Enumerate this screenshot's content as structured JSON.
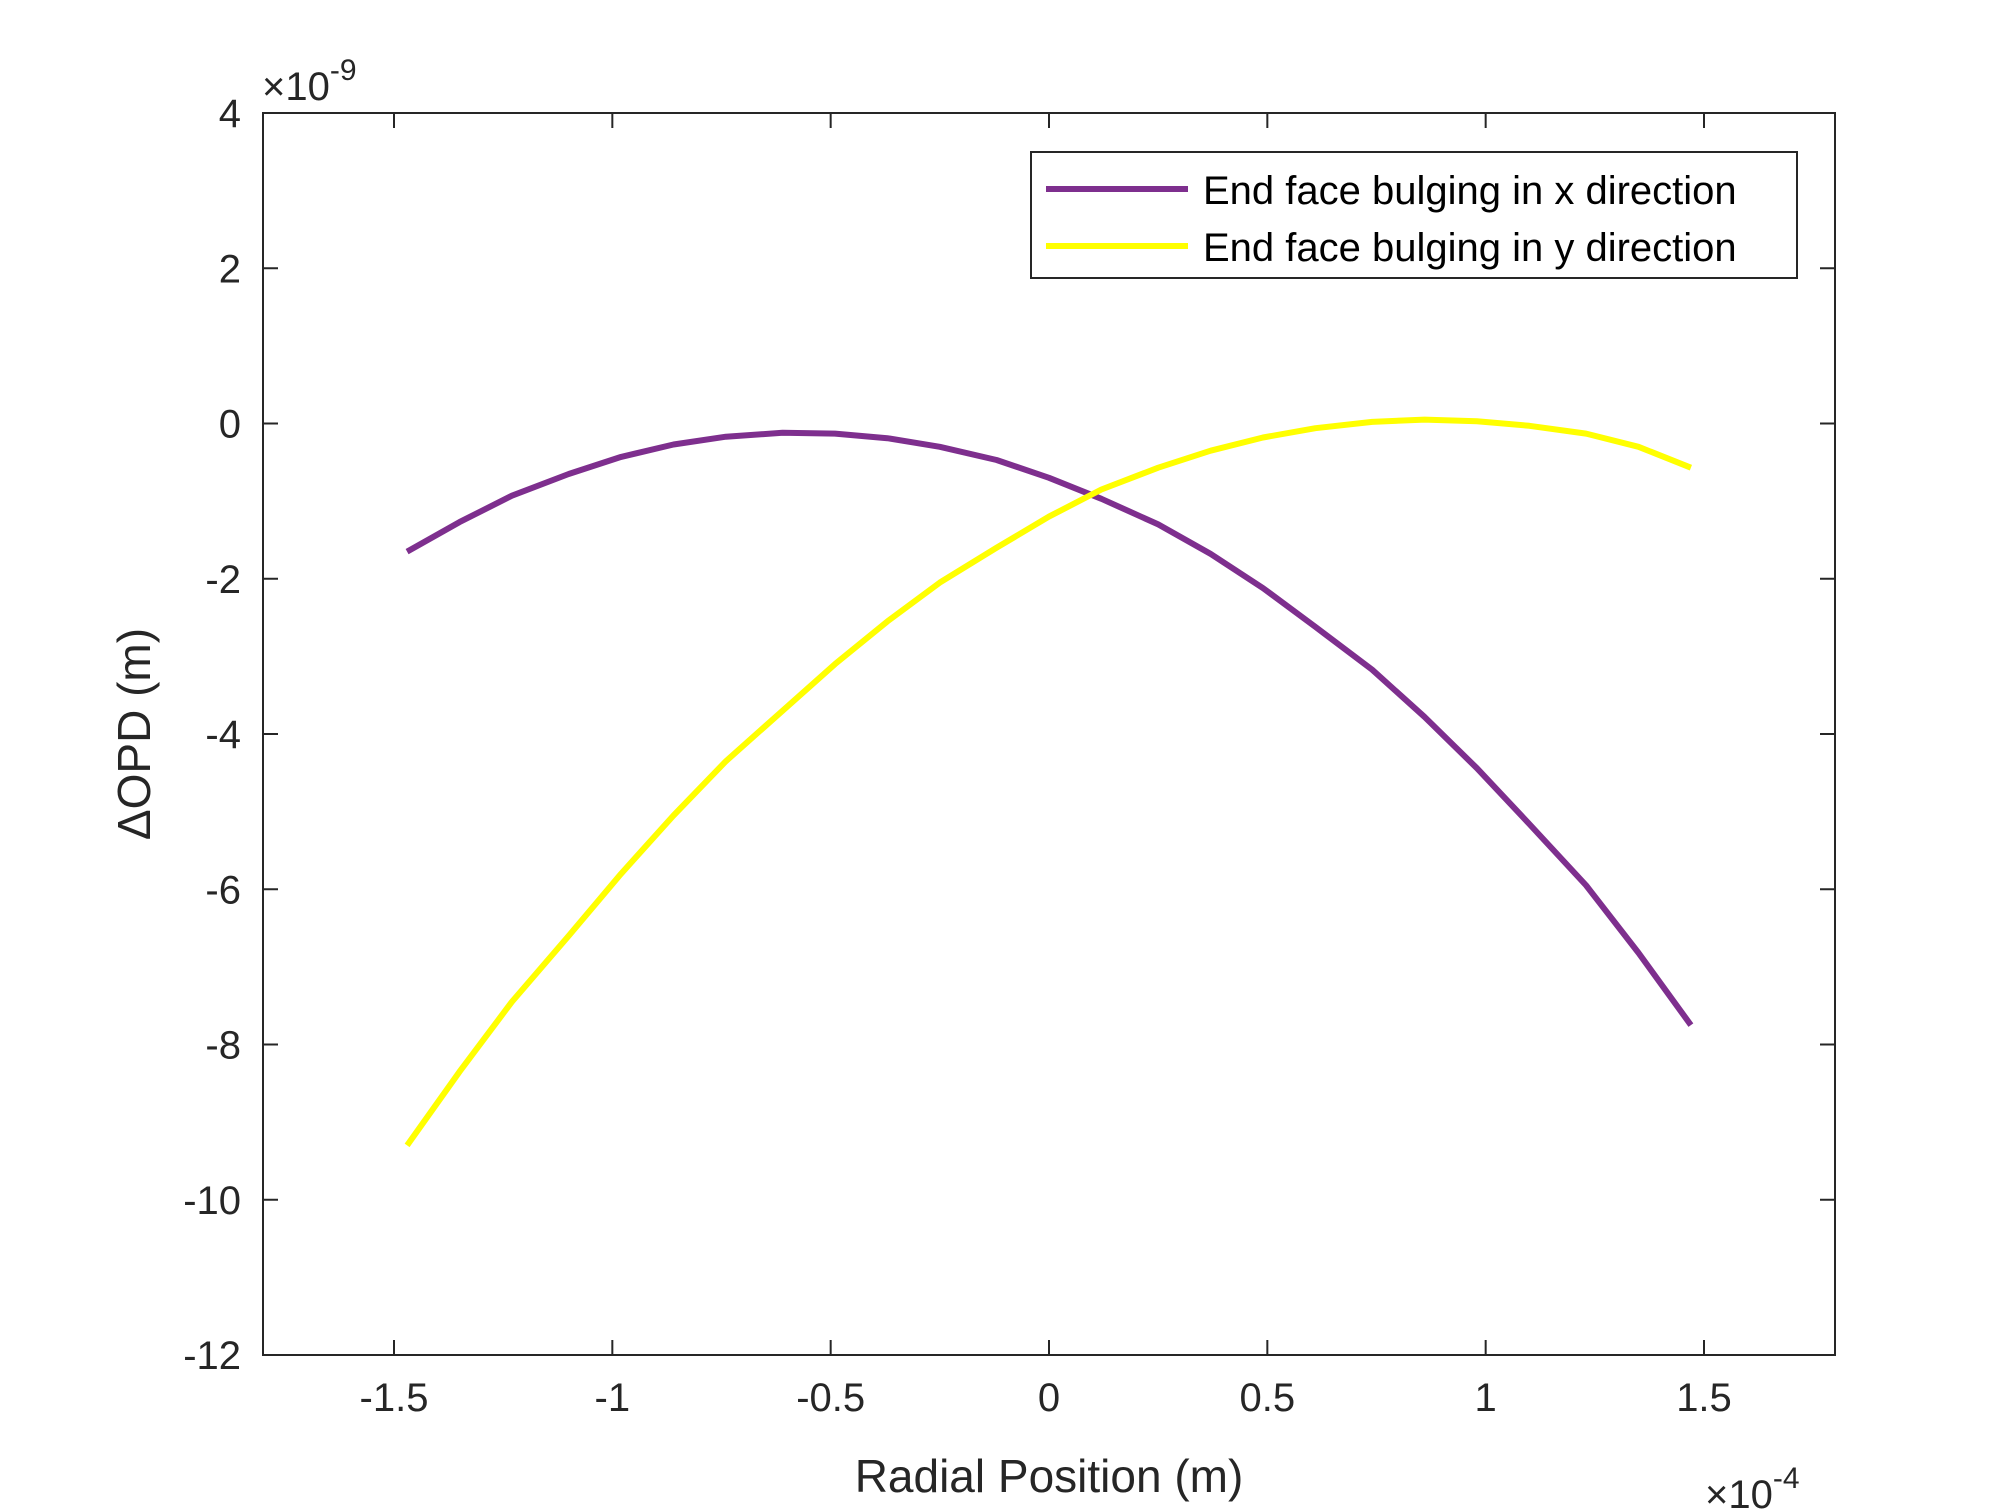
{
  "chart_data": {
    "type": "line",
    "title": "",
    "xlabel": "Radial Position (m)",
    "ylabel": "ΔOPD (m)",
    "x_exponent": {
      "base": "×10",
      "power": "-4"
    },
    "y_exponent": {
      "base": "×10",
      "power": "-9"
    },
    "xlim": [
      -1.8,
      1.8
    ],
    "ylim": [
      -12,
      4
    ],
    "xticks": [
      -1.5,
      -1,
      -0.5,
      0,
      0.5,
      1,
      1.5
    ],
    "xtick_labels": [
      "-1.5",
      "-1",
      "-0.5",
      "0",
      "0.5",
      "1",
      "1.5"
    ],
    "yticks": [
      -12,
      -10,
      -8,
      -6,
      -4,
      -2,
      0,
      2,
      4
    ],
    "ytick_labels": [
      "-12",
      "-10",
      "-8",
      "-6",
      "-4",
      "-2",
      "0",
      "2",
      "4"
    ],
    "grid": false,
    "legend_position": "top-right",
    "series": [
      {
        "name": "End face bulging in x direction",
        "color": "#7E2F8E",
        "x": [
          -1.47,
          -1.35,
          -1.23,
          -1.1,
          -0.98,
          -0.86,
          -0.74,
          -0.61,
          -0.49,
          -0.37,
          -0.25,
          -0.12,
          0.0,
          0.12,
          0.25,
          0.37,
          0.49,
          0.61,
          0.74,
          0.86,
          0.98,
          1.1,
          1.23,
          1.35,
          1.47
        ],
        "values": [
          -1.65,
          -1.27,
          -0.93,
          -0.65,
          -0.43,
          -0.27,
          -0.17,
          -0.12,
          -0.13,
          -0.19,
          -0.3,
          -0.47,
          -0.7,
          -0.97,
          -1.3,
          -1.68,
          -2.12,
          -2.62,
          -3.17,
          -3.78,
          -4.44,
          -5.16,
          -5.95,
          -6.82,
          -7.75
        ]
      },
      {
        "name": "End face bulging in y direction",
        "color": "#FFFF00",
        "x": [
          -1.47,
          -1.35,
          -1.23,
          -1.1,
          -0.98,
          -0.86,
          -0.74,
          -0.61,
          -0.49,
          -0.37,
          -0.25,
          -0.12,
          0.0,
          0.12,
          0.25,
          0.37,
          0.49,
          0.61,
          0.74,
          0.86,
          0.98,
          1.1,
          1.23,
          1.35,
          1.47
        ],
        "values": [
          -9.3,
          -8.35,
          -7.45,
          -6.6,
          -5.8,
          -5.05,
          -4.35,
          -3.7,
          -3.1,
          -2.55,
          -2.05,
          -1.6,
          -1.2,
          -0.85,
          -0.57,
          -0.35,
          -0.18,
          -0.06,
          0.02,
          0.05,
          0.03,
          -0.03,
          -0.13,
          -0.3,
          -0.57
        ]
      }
    ]
  }
}
